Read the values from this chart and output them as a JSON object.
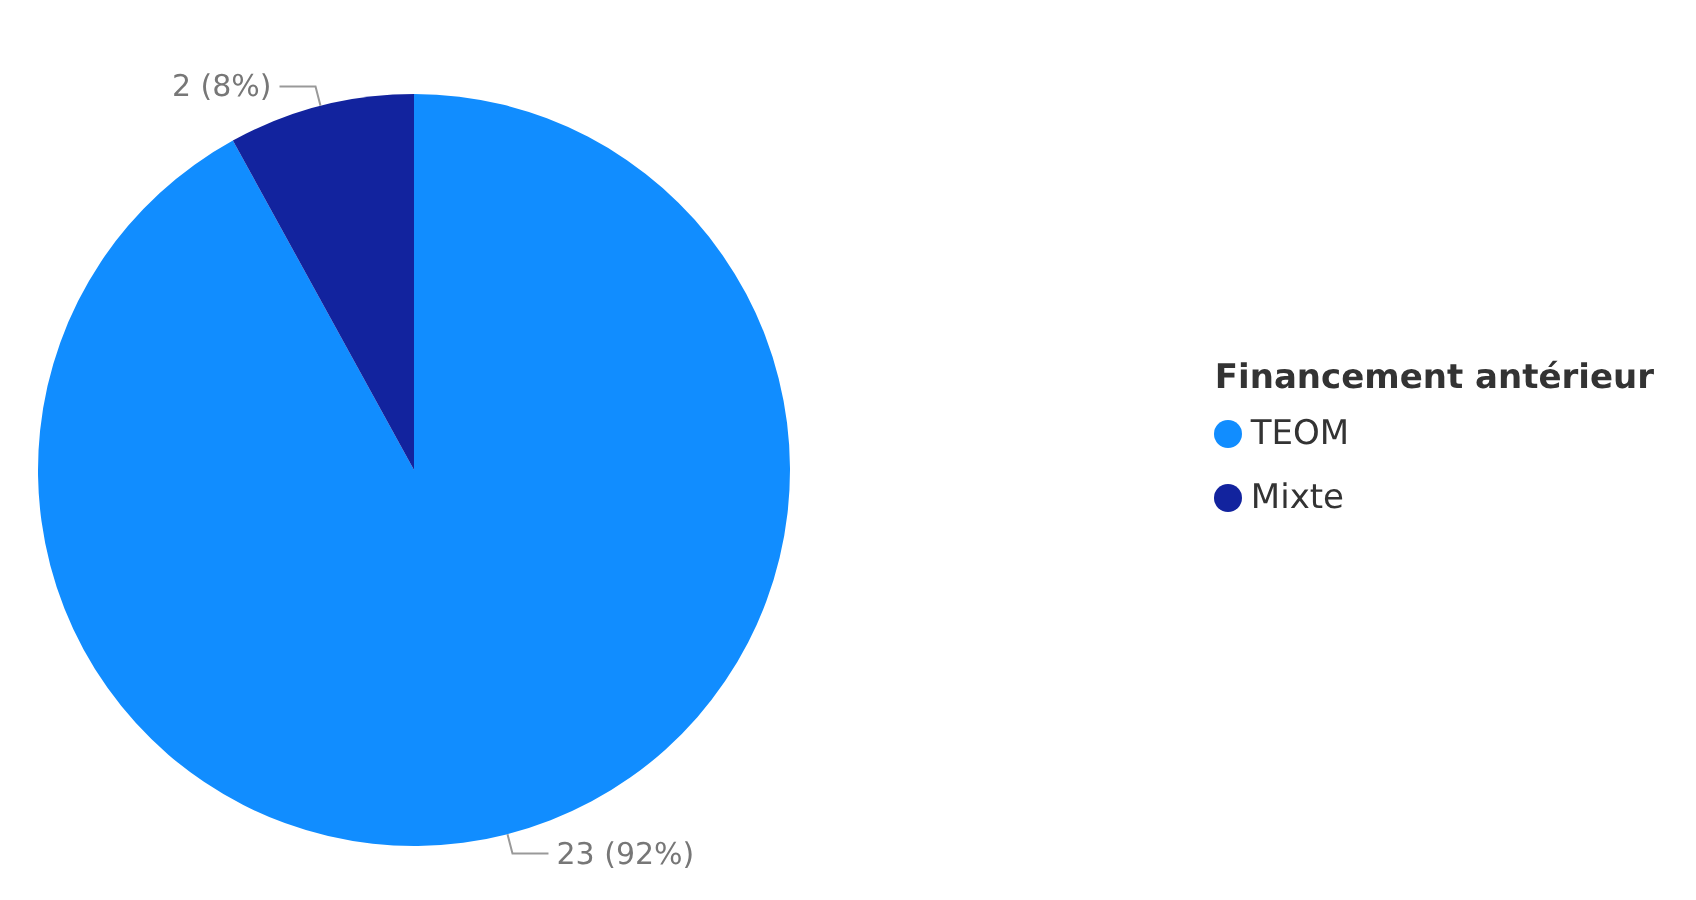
{
  "chart_data": {
    "type": "pie",
    "legend_title": "Financement antérieur",
    "categories": [
      "TEOM",
      "Mixte"
    ],
    "values": [
      23,
      2
    ],
    "colors": [
      "#118dff",
      "#12239e"
    ],
    "value_labels": [
      "23 (92%)",
      "2 (8%)"
    ],
    "legend": "right"
  }
}
